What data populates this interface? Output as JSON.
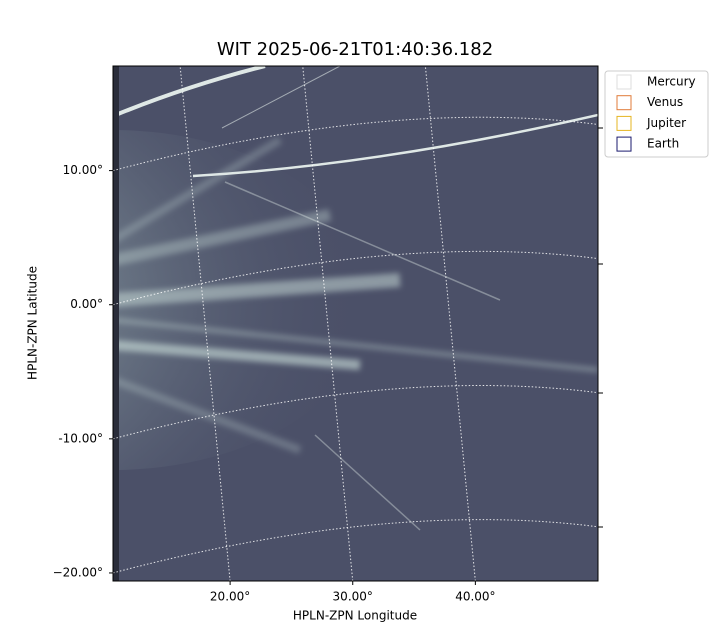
{
  "chart_data": {
    "type": "image",
    "title": "WIT 2025-06-21T01:40:36.182",
    "x_label": "HPLN-ZPN Longitude",
    "y_label": "HPLN-ZPN Latitude",
    "xlim": [
      10.45,
      50.0
    ],
    "ylim": [
      -20.6,
      17.8
    ],
    "xticks": [
      {
        "value": 20,
        "label": "20.00°"
      },
      {
        "value": 30,
        "label": "30.00°"
      },
      {
        "value": 40,
        "label": "40.00°"
      }
    ],
    "yticks": [
      {
        "value": 10,
        "label": "10.00°"
      },
      {
        "value": 0,
        "label": "0.00°"
      },
      {
        "value": -10,
        "label": "-10.00°"
      },
      {
        "value": -20,
        "label": "−20.00°"
      }
    ],
    "grid": true,
    "legend_position": "outside-right",
    "legend": [
      {
        "name": "Mercury",
        "color": "#dddddd"
      },
      {
        "name": "Venus",
        "color": "#e07b39"
      },
      {
        "name": "Jupiter",
        "color": "#e6b422"
      },
      {
        "name": "Earth",
        "color": "#1a1a6e"
      }
    ]
  }
}
